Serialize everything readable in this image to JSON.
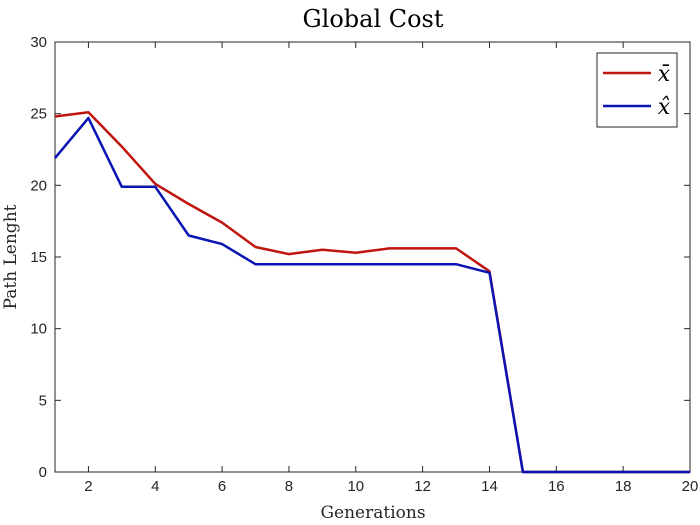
{
  "chart_data": {
    "type": "line",
    "title": "Global Cost",
    "xlabel": "Generations",
    "ylabel": "Path Lenght",
    "xlim": [
      1,
      20
    ],
    "ylim": [
      0,
      30
    ],
    "xticks": [
      2,
      4,
      6,
      8,
      10,
      12,
      14,
      16,
      18,
      20
    ],
    "yticks": [
      0,
      5,
      10,
      15,
      20,
      25,
      30
    ],
    "grid": false,
    "legend_position": "top-right",
    "series": [
      {
        "name": "x̄",
        "color": "#c0140e",
        "x": [
          1,
          2,
          3,
          4,
          5,
          6,
          7,
          8,
          9,
          10,
          11,
          12,
          13,
          14,
          15,
          16,
          17,
          18,
          19,
          20
        ],
        "values": [
          24.8,
          25.1,
          22.7,
          20.1,
          18.7,
          17.4,
          15.7,
          15.2,
          15.5,
          15.3,
          15.6,
          15.6,
          15.6,
          14.0,
          0,
          0,
          0,
          0,
          0,
          0
        ]
      },
      {
        "name": "x̂",
        "color": "#0a14b4",
        "x": [
          1,
          2,
          3,
          4,
          5,
          6,
          7,
          8,
          9,
          10,
          11,
          12,
          13,
          14,
          15,
          16,
          17,
          18,
          19,
          20
        ],
        "values": [
          21.9,
          24.7,
          19.9,
          19.9,
          16.5,
          15.9,
          14.5,
          14.5,
          14.5,
          14.5,
          14.5,
          14.5,
          14.5,
          13.9,
          0,
          0,
          0,
          0,
          0,
          0
        ]
      }
    ]
  }
}
